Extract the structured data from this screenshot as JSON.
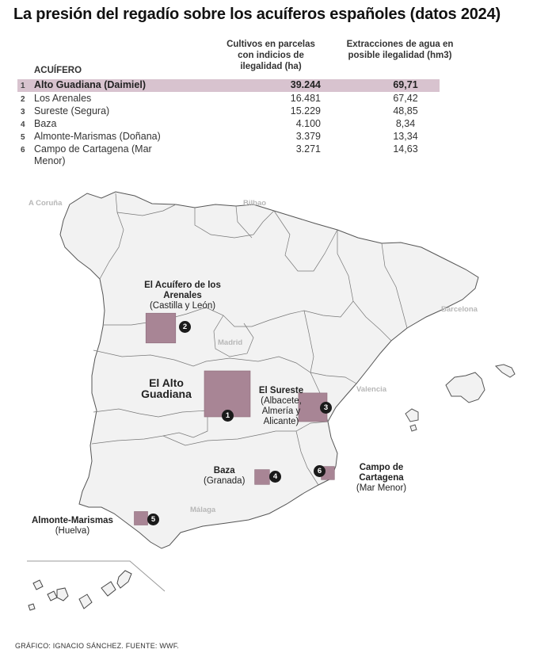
{
  "title": "La presión del regadío sobre los acuíferos españoles (datos 2024)",
  "table": {
    "header_name": "ACUÍFERO",
    "header_col1": "Cultivos en parcelas con indicios de ilegalidad (ha)",
    "header_col2": "Extracciones de agua en posible ilegalidad (hm3)",
    "rows": [
      {
        "rank": "1",
        "name": "Alto Guadiana (Daimiel)",
        "crops_ha": "39.244",
        "extraction_hm3": "69,71"
      },
      {
        "rank": "2",
        "name": "Los Arenales",
        "crops_ha": "16.481",
        "extraction_hm3": "67,42"
      },
      {
        "rank": "3",
        "name": "Sureste (Segura)",
        "crops_ha": "15.229",
        "extraction_hm3": "48,85"
      },
      {
        "rank": "4",
        "name": "Baza",
        "crops_ha": "4.100",
        "extraction_hm3": "8,34"
      },
      {
        "rank": "5",
        "name": "Almonte-Marismas (Doñana)",
        "crops_ha": "3.379",
        "extraction_hm3": "13,34"
      },
      {
        "rank": "6",
        "name": "Campo de Cartagena (Mar Menor)",
        "crops_ha": "3.271",
        "extraction_hm3": "14,63"
      }
    ]
  },
  "map": {
    "cities": [
      "A Coruña",
      "Bilbao",
      "Madrid",
      "Barcelona",
      "Valencia",
      "Málaga"
    ],
    "aquifers": [
      {
        "marker": "1",
        "name": "El Alto Guadiana",
        "detail": "",
        "crops_ha": 39244
      },
      {
        "marker": "2",
        "name": "El Acuífero de los Arenales",
        "detail": "(Castilla y León)",
        "crops_ha": 16481
      },
      {
        "marker": "3",
        "name": "El Sureste",
        "detail": "(Albacete, Almería y Alicante)",
        "crops_ha": 15229
      },
      {
        "marker": "4",
        "name": "Baza",
        "detail": "(Granada)",
        "crops_ha": 4100
      },
      {
        "marker": "5",
        "name": "Almonte-Marismas",
        "detail": "(Huelva)",
        "crops_ha": 3379
      },
      {
        "marker": "6",
        "name": "Campo de Cartagena",
        "detail": "(Mar Menor)",
        "crops_ha": 3271
      }
    ]
  },
  "colors": {
    "aquifer_fill": "#a88595",
    "highlight_row": "#d8c3cf",
    "land": "#f2f2f2",
    "border": "#777777"
  },
  "footer": "GRÁFICO: IGNACIO SÁNCHEZ. FUENTE: WWF."
}
